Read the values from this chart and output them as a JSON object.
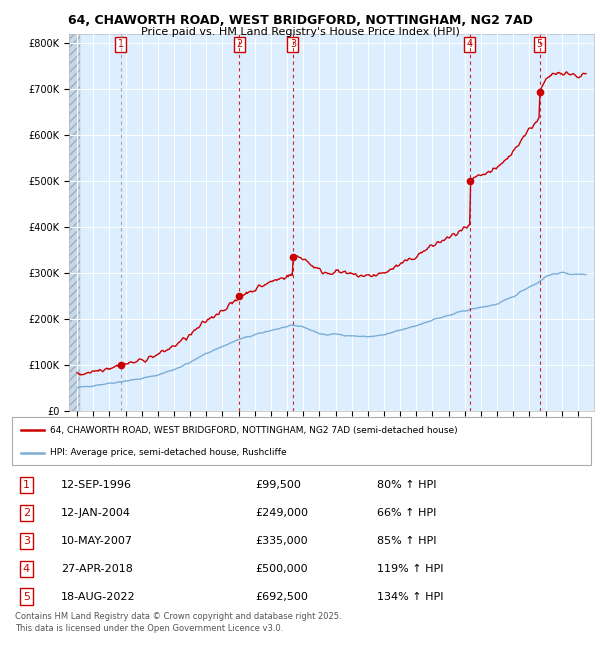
{
  "title1": "64, CHAWORTH ROAD, WEST BRIDGFORD, NOTTINGHAM, NG2 7AD",
  "title2": "Price paid vs. HM Land Registry's House Price Index (HPI)",
  "legend_red": "64, CHAWORTH ROAD, WEST BRIDGFORD, NOTTINGHAM, NG2 7AD (semi-detached house)",
  "legend_blue": "HPI: Average price, semi-detached house, Rushcliffe",
  "footer1": "Contains HM Land Registry data © Crown copyright and database right 2025.",
  "footer2": "This data is licensed under the Open Government Licence v3.0.",
  "table_dates": [
    "12-SEP-1996",
    "12-JAN-2004",
    "10-MAY-2007",
    "27-APR-2018",
    "18-AUG-2022"
  ],
  "table_prices": [
    "£99,500",
    "£249,000",
    "£335,000",
    "£500,000",
    "£692,500"
  ],
  "table_pcts": [
    "80% ↑ HPI",
    "66% ↑ HPI",
    "85% ↑ HPI",
    "119% ↑ HPI",
    "134% ↑ HPI"
  ],
  "trans_years": [
    1996.71,
    2004.04,
    2007.36,
    2018.32,
    2022.63
  ],
  "trans_prices": [
    99500,
    249000,
    335000,
    500000,
    692500
  ],
  "red_color": "#cc0000",
  "blue_color": "#7aaed6",
  "bg_plot": "#ddeeff",
  "ylabels": [
    "£0",
    "£100K",
    "£200K",
    "£300K",
    "£400K",
    "£500K",
    "£600K",
    "£700K",
    "£800K"
  ],
  "yticks": [
    0,
    100000,
    200000,
    300000,
    400000,
    500000,
    600000,
    700000,
    800000
  ]
}
